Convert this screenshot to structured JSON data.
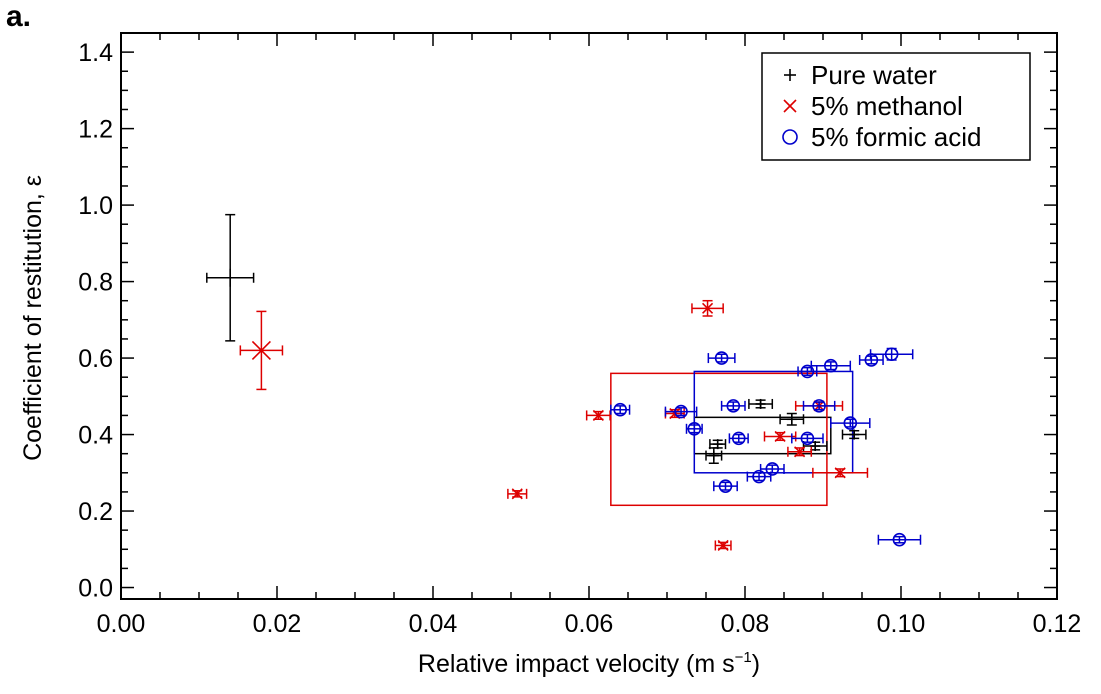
{
  "panel_label": "a.",
  "chart_data": {
    "type": "scatter",
    "xlabel": "Relative impact velocity (m s",
    "xlabel_sup": "−1",
    "xlabel_tail": ")",
    "ylabel": "Coefficient of restitution, ε",
    "xlim": [
      0.0,
      0.12
    ],
    "ylim": [
      -0.03,
      1.45
    ],
    "xticks": [
      0.0,
      0.02,
      0.04,
      0.06,
      0.08,
      0.1,
      0.12
    ],
    "xtick_labels": [
      "0.00",
      "0.02",
      "0.04",
      "0.06",
      "0.08",
      "0.10",
      "0.12"
    ],
    "yticks": [
      0.0,
      0.2,
      0.4,
      0.6,
      0.8,
      1.0,
      1.2,
      1.4
    ],
    "ytick_labels": [
      "0.0",
      "0.2",
      "0.4",
      "0.6",
      "0.8",
      "1.0",
      "1.2",
      "1.4"
    ],
    "grid": false,
    "legend": "top-right",
    "series": [
      {
        "name": "Pure water",
        "color": "#000000",
        "marker": "plus",
        "points": [
          {
            "x": 0.082,
            "y": 0.48,
            "xerr": 0.0015,
            "yerr": 0.01
          },
          {
            "x": 0.086,
            "y": 0.44,
            "xerr": 0.0015,
            "yerr": 0.015
          },
          {
            "x": 0.094,
            "y": 0.4,
            "xerr": 0.0015,
            "yerr": 0.01
          },
          {
            "x": 0.0765,
            "y": 0.375,
            "xerr": 0.001,
            "yerr": 0.01
          },
          {
            "x": 0.076,
            "y": 0.345,
            "xerr": 0.001,
            "yerr": 0.02
          },
          {
            "x": 0.089,
            "y": 0.37,
            "xerr": 0.0015,
            "yerr": 0.01
          }
        ],
        "mean": {
          "x": 0.014,
          "y": 0.81,
          "xerr": 0.003,
          "yerr": 0.165
        },
        "box": {
          "x0": 0.0735,
          "x1": 0.091,
          "y0": 0.35,
          "y1": 0.445
        }
      },
      {
        "name": "5% methanol",
        "color": "#dd0000",
        "marker": "x",
        "points": [
          {
            "x": 0.0752,
            "y": 0.73,
            "xerr": 0.002,
            "yerr": 0.02
          },
          {
            "x": 0.0612,
            "y": 0.45,
            "xerr": 0.0015,
            "yerr": 0.01
          },
          {
            "x": 0.071,
            "y": 0.455,
            "xerr": 0.0012,
            "yerr": 0.01
          },
          {
            "x": 0.0895,
            "y": 0.475,
            "xerr": 0.003,
            "yerr": 0.01
          },
          {
            "x": 0.0845,
            "y": 0.395,
            "xerr": 0.002,
            "yerr": 0.01
          },
          {
            "x": 0.087,
            "y": 0.355,
            "xerr": 0.0015,
            "yerr": 0.01
          },
          {
            "x": 0.0922,
            "y": 0.3,
            "xerr": 0.0035,
            "yerr": 0.01
          },
          {
            "x": 0.0508,
            "y": 0.245,
            "xerr": 0.0012,
            "yerr": 0.008
          },
          {
            "x": 0.0772,
            "y": 0.11,
            "xerr": 0.001,
            "yerr": 0.008
          }
        ],
        "mean": {
          "x": 0.018,
          "y": 0.62,
          "xerr": 0.0027,
          "yerr": 0.102
        },
        "box": {
          "x0": 0.0628,
          "x1": 0.0905,
          "y0": 0.215,
          "y1": 0.56
        }
      },
      {
        "name": "5% formic acid",
        "color": "#0000cc",
        "marker": "circle",
        "points": [
          {
            "x": 0.0988,
            "y": 0.61,
            "xerr": 0.0027,
            "yerr": 0.015
          },
          {
            "x": 0.0962,
            "y": 0.595,
            "xerr": 0.0015,
            "yerr": 0.01
          },
          {
            "x": 0.091,
            "y": 0.58,
            "xerr": 0.0025,
            "yerr": 0.01
          },
          {
            "x": 0.088,
            "y": 0.565,
            "xerr": 0.0012,
            "yerr": 0.01
          },
          {
            "x": 0.077,
            "y": 0.6,
            "xerr": 0.0017,
            "yerr": 0.01
          },
          {
            "x": 0.064,
            "y": 0.465,
            "xerr": 0.0012,
            "yerr": 0.01
          },
          {
            "x": 0.0718,
            "y": 0.46,
            "xerr": 0.002,
            "yerr": 0.01
          },
          {
            "x": 0.0785,
            "y": 0.475,
            "xerr": 0.0015,
            "yerr": 0.01
          },
          {
            "x": 0.0895,
            "y": 0.475,
            "xerr": 0.002,
            "yerr": 0.01
          },
          {
            "x": 0.0935,
            "y": 0.43,
            "xerr": 0.0025,
            "yerr": 0.01
          },
          {
            "x": 0.0735,
            "y": 0.415,
            "xerr": 0.001,
            "yerr": 0.01
          },
          {
            "x": 0.0792,
            "y": 0.39,
            "xerr": 0.0012,
            "yerr": 0.01
          },
          {
            "x": 0.088,
            "y": 0.39,
            "xerr": 0.002,
            "yerr": 0.01
          },
          {
            "x": 0.0835,
            "y": 0.31,
            "xerr": 0.0015,
            "yerr": 0.01
          },
          {
            "x": 0.0818,
            "y": 0.29,
            "xerr": 0.0015,
            "yerr": 0.01
          },
          {
            "x": 0.0775,
            "y": 0.265,
            "xerr": 0.0015,
            "yerr": 0.01
          },
          {
            "x": 0.0998,
            "y": 0.125,
            "xerr": 0.0027,
            "yerr": 0.008
          }
        ],
        "box": {
          "x0": 0.0735,
          "x1": 0.0938,
          "y0": 0.3,
          "y1": 0.565
        }
      }
    ]
  }
}
